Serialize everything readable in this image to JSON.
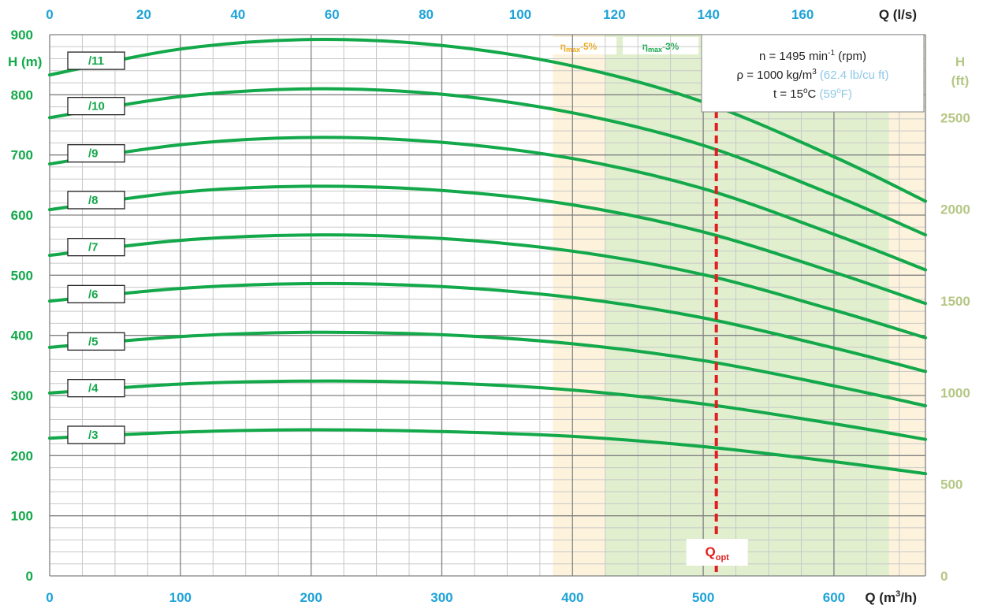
{
  "colors": {
    "curve": "#13a84a",
    "axis_left": "#13a84a",
    "axis_top": "#1ea3d8",
    "axis_bottom": "#1ea3d8",
    "axis_right": "#b5c785",
    "qopt": "#e02020",
    "band_outer": "#fdf3dc",
    "band_inner": "#e1efcf",
    "band5_label": "#f0a914",
    "band3_label": "#13a84a",
    "info_note": "#8ec8e6",
    "grid_major": "#808080",
    "grid_minor": "#c8c8c8"
  },
  "info_box": {
    "line1": "n = 1495 min",
    "line1_sup": "-1",
    "line1_tail": " (rpm)",
    "line2": "ρ = 1000 kg/m",
    "line2_sup": "3",
    "line2_note": " (62.4 lb/cu ft)",
    "line3": "t = 15",
    "line3_sup": "o",
    "line3_mid": "C ",
    "line3_note": "(59",
    "line3_note_sup": "o",
    "line3_note_tail": "F)"
  },
  "chart_data": {
    "type": "line",
    "title": "",
    "xlabel": "Q (m³/h)",
    "xlabel_top": "Q (l/s)",
    "ylabel": "H (m)",
    "ylabel_right": "H (ft)",
    "xlim": [
      0,
      670
    ],
    "ylim": [
      0,
      900
    ],
    "x_ticks": [
      0,
      100,
      200,
      300,
      400,
      500,
      600
    ],
    "x_top_ticks": [
      0,
      20,
      40,
      60,
      80,
      100,
      120,
      140,
      160
    ],
    "y_ticks": [
      0,
      100,
      200,
      300,
      400,
      500,
      600,
      700,
      800,
      900
    ],
    "y_right_ticks": [
      0,
      500,
      1000,
      1500,
      2000,
      2500
    ],
    "grid": true,
    "q_opt": 510,
    "q_opt_label": "Q",
    "q_opt_sub": "opt",
    "bands": [
      {
        "name": "η",
        "sub": "max",
        "suffix": "-5%",
        "from": 385,
        "to": 670
      },
      {
        "name": "η",
        "sub": "max",
        "suffix": "-3%",
        "from": 425,
        "to": 642
      }
    ],
    "series": [
      {
        "name": "/11",
        "x": [
          0,
          100,
          200,
          300,
          400,
          500,
          600,
          670
        ],
        "y": [
          833,
          876,
          892,
          882,
          848,
          788,
          697,
          623
        ]
      },
      {
        "name": "/10",
        "x": [
          0,
          100,
          200,
          300,
          400,
          500,
          600,
          670
        ],
        "y": [
          762,
          797,
          810,
          801,
          770,
          716,
          633,
          567
        ]
      },
      {
        "name": "/9",
        "x": [
          0,
          100,
          200,
          300,
          400,
          500,
          600,
          670
        ],
        "y": [
          685,
          717,
          729,
          721,
          694,
          644,
          568,
          509
        ]
      },
      {
        "name": "/8",
        "x": [
          0,
          100,
          200,
          300,
          400,
          500,
          600,
          670
        ],
        "y": [
          609,
          638,
          648,
          641,
          617,
          572,
          505,
          453
        ]
      },
      {
        "name": "/7",
        "x": [
          0,
          100,
          200,
          300,
          400,
          500,
          600,
          670
        ],
        "y": [
          533,
          558,
          567,
          561,
          540,
          501,
          442,
          396
        ]
      },
      {
        "name": "/6",
        "x": [
          0,
          100,
          200,
          300,
          400,
          500,
          600,
          670
        ],
        "y": [
          457,
          478,
          486,
          481,
          463,
          429,
          379,
          340
        ]
      },
      {
        "name": "/5",
        "x": [
          0,
          100,
          200,
          300,
          400,
          500,
          600,
          670
        ],
        "y": [
          380,
          398,
          405,
          401,
          386,
          358,
          316,
          283
        ]
      },
      {
        "name": "/4",
        "x": [
          0,
          100,
          200,
          300,
          400,
          500,
          600,
          670
        ],
        "y": [
          304,
          319,
          324,
          321,
          309,
          286,
          253,
          227
        ]
      },
      {
        "name": "/3",
        "x": [
          0,
          100,
          200,
          300,
          400,
          500,
          600,
          670
        ],
        "y": [
          229,
          239,
          243,
          240,
          232,
          215,
          190,
          170
        ]
      }
    ]
  }
}
